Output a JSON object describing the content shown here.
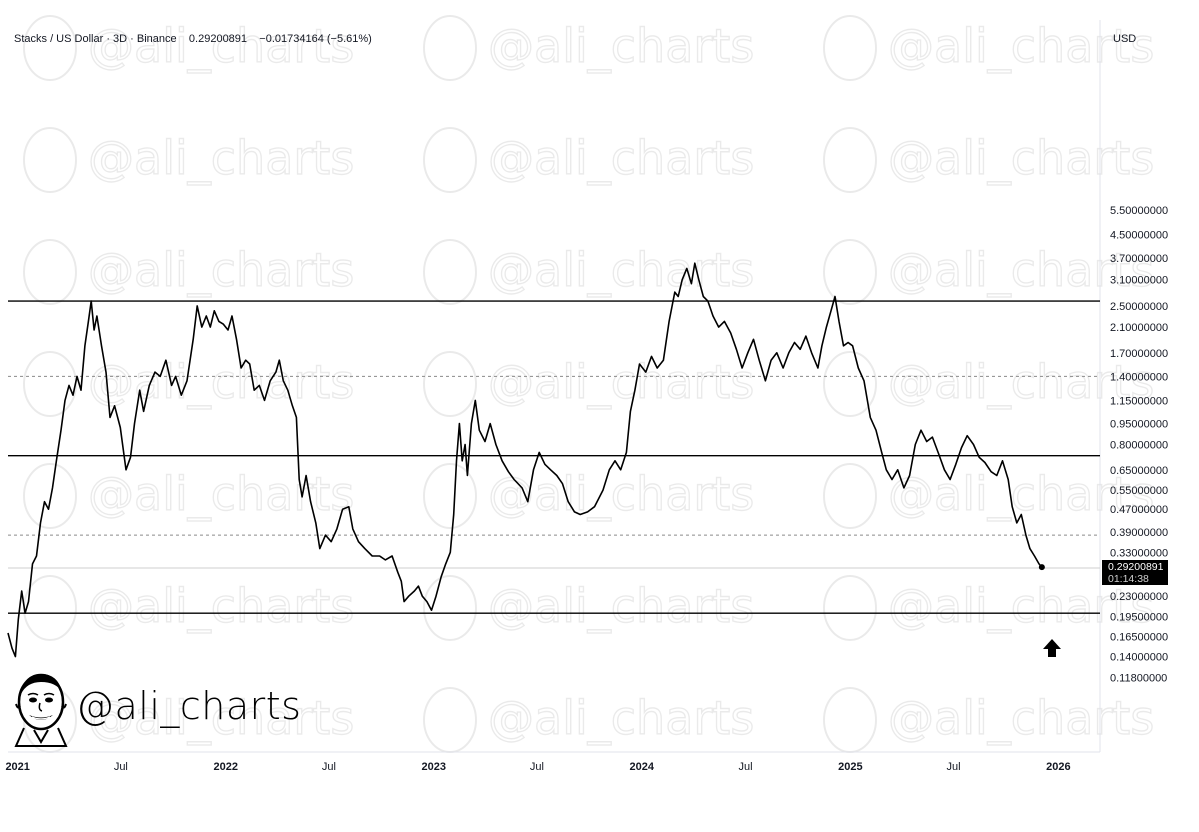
{
  "header": {
    "pair": "Stacks / US Dollar",
    "interval": "3D",
    "exchange": "Binance",
    "price": "0.29200891",
    "change": "−0.01734164 (−5.61%)"
  },
  "currency_label": "USD",
  "price_tag": {
    "price": "0.29200891",
    "countdown": "01:14:38"
  },
  "watermark": "@ali_charts",
  "brand_handle": "@ali_charts",
  "colors": {
    "line": "#000000",
    "grid_dashed": "#9a9a9a",
    "axis_border": "#e0e3eb"
  },
  "chart_data": {
    "type": "line",
    "scale": "log",
    "ylim": [
      0.1,
      5.5
    ],
    "xlim": [
      "2020-12-15",
      "2026-03-15"
    ],
    "y_ticks": [
      "5.50000000",
      "4.50000000",
      "3.70000000",
      "3.10000000",
      "2.50000000",
      "2.10000000",
      "1.70000000",
      "1.40000000",
      "1.15000000",
      "0.95000000",
      "0.80000000",
      "0.65000000",
      "0.55000000",
      "0.47000000",
      "0.39000000",
      "0.33000000",
      "0.23000000",
      "0.19500000",
      "0.16500000",
      "0.14000000",
      "0.11800000"
    ],
    "x_ticks": [
      {
        "label": "2021",
        "date": "2021-01-01",
        "bold": true
      },
      {
        "label": "Jul",
        "date": "2021-07-01",
        "bold": false
      },
      {
        "label": "2022",
        "date": "2022-01-01",
        "bold": true
      },
      {
        "label": "Jul",
        "date": "2022-07-01",
        "bold": false
      },
      {
        "label": "2023",
        "date": "2023-01-01",
        "bold": true
      },
      {
        "label": "Jul",
        "date": "2023-07-01",
        "bold": false
      },
      {
        "label": "2024",
        "date": "2024-01-01",
        "bold": true
      },
      {
        "label": "Jul",
        "date": "2024-07-01",
        "bold": false
      },
      {
        "label": "2025",
        "date": "2025-01-01",
        "bold": true
      },
      {
        "label": "Jul",
        "date": "2025-07-01",
        "bold": false
      },
      {
        "label": "2026",
        "date": "2026-01-01",
        "bold": true
      }
    ],
    "horizontal_levels": [
      {
        "value": 2.6,
        "style": "solid"
      },
      {
        "value": 1.4,
        "style": "dashed"
      },
      {
        "value": 0.73,
        "style": "solid"
      },
      {
        "value": 0.38,
        "style": "dashed"
      },
      {
        "value": 0.29,
        "style": "current"
      },
      {
        "value": 0.2,
        "style": "solid"
      }
    ],
    "annotation": "up-arrow",
    "series": [
      {
        "values": [
          [
            "2020-12-15",
            0.17
          ],
          [
            "2020-12-22",
            0.15
          ],
          [
            "2020-12-28",
            0.14
          ],
          [
            "2021-01-02",
            0.19
          ],
          [
            "2021-01-08",
            0.24
          ],
          [
            "2021-01-14",
            0.2
          ],
          [
            "2021-01-20",
            0.22
          ],
          [
            "2021-01-27",
            0.3
          ],
          [
            "2021-02-03",
            0.32
          ],
          [
            "2021-02-10",
            0.42
          ],
          [
            "2021-02-17",
            0.5
          ],
          [
            "2021-02-24",
            0.47
          ],
          [
            "2021-03-03",
            0.56
          ],
          [
            "2021-03-10",
            0.7
          ],
          [
            "2021-03-18",
            0.9
          ],
          [
            "2021-03-25",
            1.15
          ],
          [
            "2021-04-01",
            1.3
          ],
          [
            "2021-04-08",
            1.2
          ],
          [
            "2021-04-15",
            1.4
          ],
          [
            "2021-04-22",
            1.25
          ],
          [
            "2021-04-29",
            1.8
          ],
          [
            "2021-05-05",
            2.2
          ],
          [
            "2021-05-10",
            2.6
          ],
          [
            "2021-05-15",
            2.05
          ],
          [
            "2021-05-20",
            2.3
          ],
          [
            "2021-05-28",
            1.8
          ],
          [
            "2021-06-05",
            1.45
          ],
          [
            "2021-06-12",
            1.0
          ],
          [
            "2021-06-20",
            1.1
          ],
          [
            "2021-06-30",
            0.92
          ],
          [
            "2021-07-10",
            0.65
          ],
          [
            "2021-07-18",
            0.72
          ],
          [
            "2021-07-25",
            0.95
          ],
          [
            "2021-08-03",
            1.25
          ],
          [
            "2021-08-10",
            1.05
          ],
          [
            "2021-08-20",
            1.3
          ],
          [
            "2021-08-30",
            1.45
          ],
          [
            "2021-09-08",
            1.4
          ],
          [
            "2021-09-18",
            1.6
          ],
          [
            "2021-09-28",
            1.3
          ],
          [
            "2021-10-05",
            1.4
          ],
          [
            "2021-10-15",
            1.2
          ],
          [
            "2021-10-25",
            1.35
          ],
          [
            "2021-11-05",
            1.9
          ],
          [
            "2021-11-12",
            2.5
          ],
          [
            "2021-11-20",
            2.1
          ],
          [
            "2021-11-28",
            2.3
          ],
          [
            "2021-12-05",
            2.1
          ],
          [
            "2021-12-12",
            2.4
          ],
          [
            "2021-12-20",
            2.2
          ],
          [
            "2021-12-28",
            2.15
          ],
          [
            "2022-01-05",
            2.05
          ],
          [
            "2022-01-12",
            2.3
          ],
          [
            "2022-01-20",
            1.9
          ],
          [
            "2022-01-28",
            1.5
          ],
          [
            "2022-02-05",
            1.6
          ],
          [
            "2022-02-12",
            1.55
          ],
          [
            "2022-02-20",
            1.25
          ],
          [
            "2022-03-01",
            1.3
          ],
          [
            "2022-03-10",
            1.15
          ],
          [
            "2022-03-20",
            1.35
          ],
          [
            "2022-03-30",
            1.45
          ],
          [
            "2022-04-05",
            1.6
          ],
          [
            "2022-04-12",
            1.35
          ],
          [
            "2022-04-20",
            1.25
          ],
          [
            "2022-04-28",
            1.1
          ],
          [
            "2022-05-05",
            1.0
          ],
          [
            "2022-05-10",
            0.6
          ],
          [
            "2022-05-15",
            0.52
          ],
          [
            "2022-05-22",
            0.62
          ],
          [
            "2022-05-30",
            0.5
          ],
          [
            "2022-06-08",
            0.42
          ],
          [
            "2022-06-15",
            0.34
          ],
          [
            "2022-06-25",
            0.38
          ],
          [
            "2022-07-05",
            0.36
          ],
          [
            "2022-07-15",
            0.4
          ],
          [
            "2022-07-25",
            0.47
          ],
          [
            "2022-08-05",
            0.48
          ],
          [
            "2022-08-12",
            0.4
          ],
          [
            "2022-08-22",
            0.36
          ],
          [
            "2022-09-02",
            0.34
          ],
          [
            "2022-09-15",
            0.32
          ],
          [
            "2022-09-28",
            0.32
          ],
          [
            "2022-10-08",
            0.31
          ],
          [
            "2022-10-20",
            0.32
          ],
          [
            "2022-10-30",
            0.28
          ],
          [
            "2022-11-05",
            0.26
          ],
          [
            "2022-11-10",
            0.22
          ],
          [
            "2022-11-18",
            0.23
          ],
          [
            "2022-11-28",
            0.24
          ],
          [
            "2022-12-05",
            0.25
          ],
          [
            "2022-12-12",
            0.23
          ],
          [
            "2022-12-20",
            0.22
          ],
          [
            "2022-12-28",
            0.205
          ],
          [
            "2023-01-05",
            0.23
          ],
          [
            "2023-01-14",
            0.27
          ],
          [
            "2023-01-22",
            0.3
          ],
          [
            "2023-01-30",
            0.33
          ],
          [
            "2023-02-05",
            0.45
          ],
          [
            "2023-02-10",
            0.7
          ],
          [
            "2023-02-15",
            0.95
          ],
          [
            "2023-02-20",
            0.7
          ],
          [
            "2023-02-25",
            0.8
          ],
          [
            "2023-03-01",
            0.62
          ],
          [
            "2023-03-08",
            0.95
          ],
          [
            "2023-03-15",
            1.15
          ],
          [
            "2023-03-22",
            0.9
          ],
          [
            "2023-04-01",
            0.82
          ],
          [
            "2023-04-10",
            0.95
          ],
          [
            "2023-04-20",
            0.8
          ],
          [
            "2023-05-01",
            0.7
          ],
          [
            "2023-05-12",
            0.64
          ],
          [
            "2023-05-22",
            0.6
          ],
          [
            "2023-06-05",
            0.56
          ],
          [
            "2023-06-15",
            0.5
          ],
          [
            "2023-06-25",
            0.65
          ],
          [
            "2023-07-05",
            0.75
          ],
          [
            "2023-07-15",
            0.68
          ],
          [
            "2023-07-25",
            0.65
          ],
          [
            "2023-08-05",
            0.62
          ],
          [
            "2023-08-15",
            0.58
          ],
          [
            "2023-08-25",
            0.5
          ],
          [
            "2023-09-05",
            0.46
          ],
          [
            "2023-09-15",
            0.45
          ],
          [
            "2023-09-28",
            0.46
          ],
          [
            "2023-10-10",
            0.48
          ],
          [
            "2023-10-25",
            0.55
          ],
          [
            "2023-11-05",
            0.65
          ],
          [
            "2023-11-15",
            0.7
          ],
          [
            "2023-11-25",
            0.65
          ],
          [
            "2023-12-05",
            0.75
          ],
          [
            "2023-12-12",
            1.05
          ],
          [
            "2023-12-20",
            1.25
          ],
          [
            "2023-12-28",
            1.55
          ],
          [
            "2024-01-08",
            1.45
          ],
          [
            "2024-01-18",
            1.65
          ],
          [
            "2024-01-28",
            1.5
          ],
          [
            "2024-02-08",
            1.6
          ],
          [
            "2024-02-18",
            2.2
          ],
          [
            "2024-02-28",
            2.8
          ],
          [
            "2024-03-05",
            2.7
          ],
          [
            "2024-03-12",
            3.1
          ],
          [
            "2024-03-20",
            3.4
          ],
          [
            "2024-03-28",
            3.0
          ],
          [
            "2024-04-03",
            3.55
          ],
          [
            "2024-04-10",
            3.1
          ],
          [
            "2024-04-18",
            2.7
          ],
          [
            "2024-04-26",
            2.6
          ],
          [
            "2024-05-05",
            2.3
          ],
          [
            "2024-05-15",
            2.1
          ],
          [
            "2024-05-25",
            2.2
          ],
          [
            "2024-06-05",
            2.0
          ],
          [
            "2024-06-15",
            1.75
          ],
          [
            "2024-06-25",
            1.5
          ],
          [
            "2024-07-05",
            1.7
          ],
          [
            "2024-07-15",
            1.9
          ],
          [
            "2024-07-25",
            1.6
          ],
          [
            "2024-08-05",
            1.35
          ],
          [
            "2024-08-15",
            1.6
          ],
          [
            "2024-08-25",
            1.7
          ],
          [
            "2024-09-05",
            1.5
          ],
          [
            "2024-09-15",
            1.7
          ],
          [
            "2024-09-25",
            1.85
          ],
          [
            "2024-10-05",
            1.75
          ],
          [
            "2024-10-15",
            1.95
          ],
          [
            "2024-10-25",
            1.7
          ],
          [
            "2024-11-05",
            1.5
          ],
          [
            "2024-11-12",
            1.8
          ],
          [
            "2024-11-20",
            2.1
          ],
          [
            "2024-11-28",
            2.4
          ],
          [
            "2024-12-05",
            2.7
          ],
          [
            "2024-12-12",
            2.2
          ],
          [
            "2024-12-20",
            1.8
          ],
          [
            "2024-12-28",
            1.85
          ],
          [
            "2025-01-05",
            1.8
          ],
          [
            "2025-01-15",
            1.5
          ],
          [
            "2025-01-25",
            1.35
          ],
          [
            "2025-02-05",
            1.0
          ],
          [
            "2025-02-15",
            0.9
          ],
          [
            "2025-02-25",
            0.75
          ],
          [
            "2025-03-05",
            0.65
          ],
          [
            "2025-03-15",
            0.6
          ],
          [
            "2025-03-25",
            0.65
          ],
          [
            "2025-04-05",
            0.56
          ],
          [
            "2025-04-15",
            0.62
          ],
          [
            "2025-04-25",
            0.8
          ],
          [
            "2025-05-05",
            0.9
          ],
          [
            "2025-05-15",
            0.82
          ],
          [
            "2025-05-25",
            0.85
          ],
          [
            "2025-06-05",
            0.74
          ],
          [
            "2025-06-15",
            0.65
          ],
          [
            "2025-06-25",
            0.6
          ],
          [
            "2025-07-05",
            0.68
          ],
          [
            "2025-07-15",
            0.78
          ],
          [
            "2025-07-25",
            0.86
          ],
          [
            "2025-08-05",
            0.8
          ],
          [
            "2025-08-15",
            0.72
          ],
          [
            "2025-08-25",
            0.69
          ],
          [
            "2025-09-05",
            0.64
          ],
          [
            "2025-09-15",
            0.62
          ],
          [
            "2025-09-25",
            0.7
          ],
          [
            "2025-10-05",
            0.6
          ],
          [
            "2025-10-12",
            0.48
          ],
          [
            "2025-10-20",
            0.42
          ],
          [
            "2025-10-28",
            0.45
          ],
          [
            "2025-11-05",
            0.38
          ],
          [
            "2025-11-12",
            0.34
          ],
          [
            "2025-11-20",
            0.32
          ],
          [
            "2025-11-28",
            0.3
          ],
          [
            "2025-12-03",
            0.292
          ]
        ]
      }
    ]
  }
}
